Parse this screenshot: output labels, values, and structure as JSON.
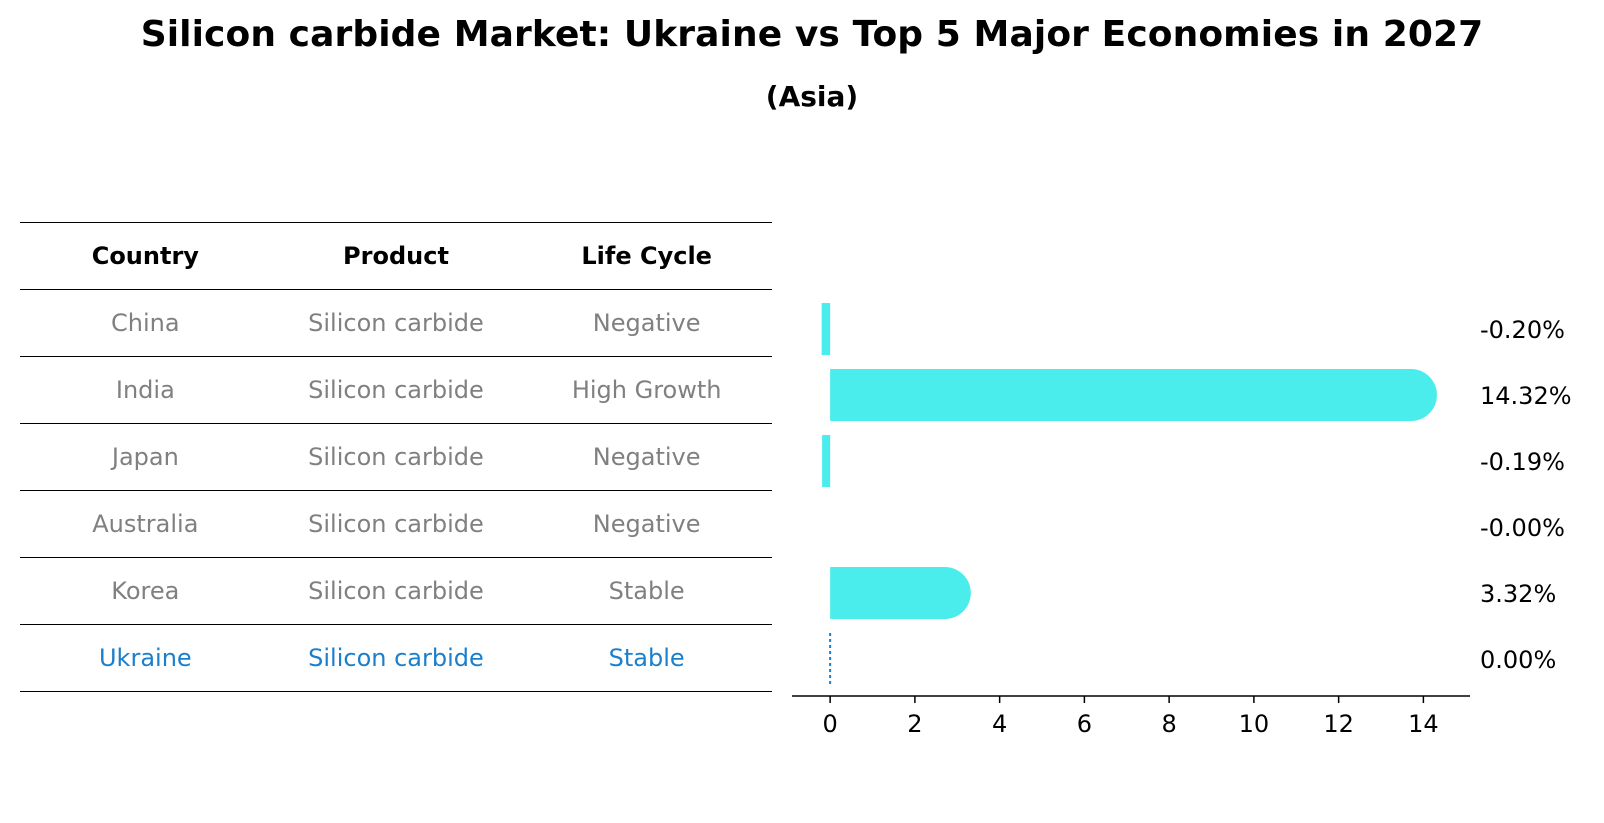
{
  "chart_data": {
    "type": "bar",
    "orientation": "horizontal",
    "title": "Silicon carbide Market: Ukraine vs Top 5 Major Economies in 2027",
    "subtitle": "(Asia)",
    "categories": [
      "China",
      "India",
      "Japan",
      "Australia",
      "Korea",
      "Ukraine"
    ],
    "values": [
      -0.2,
      14.32,
      -0.19,
      -0.0,
      3.32,
      0.0
    ],
    "value_labels": [
      "-0.20%",
      "14.32%",
      "-0.19%",
      "-0.00%",
      "3.32%",
      "0.00%"
    ],
    "xlim": [
      -0.9,
      15.1
    ],
    "xticks": [
      0,
      2,
      4,
      6,
      8,
      10,
      12,
      14
    ],
    "bar_color": "#4BECEC",
    "highlight_color": "#1A7FCC",
    "highlight_category": "Ukraine"
  },
  "table": {
    "headers": [
      "Country",
      "Product",
      "Life Cycle"
    ],
    "rows": [
      {
        "country": "China",
        "product": "Silicon carbide",
        "life_cycle": "Negative"
      },
      {
        "country": "India",
        "product": "Silicon carbide",
        "life_cycle": "High Growth"
      },
      {
        "country": "Japan",
        "product": "Silicon carbide",
        "life_cycle": "Negative"
      },
      {
        "country": "Australia",
        "product": "Silicon carbide",
        "life_cycle": "Negative"
      },
      {
        "country": "Korea",
        "product": "Silicon carbide",
        "life_cycle": "Stable"
      },
      {
        "country": "Ukraine",
        "product": "Silicon carbide",
        "life_cycle": "Stable"
      }
    ]
  }
}
